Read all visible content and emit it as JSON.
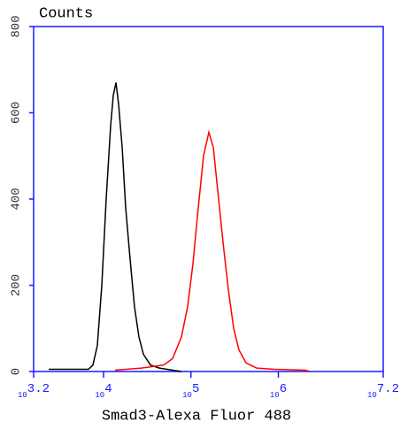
{
  "chart_data": {
    "type": "line",
    "ylabel": "Counts",
    "xlabel": "Smad3-Alexa Fluor 488",
    "xscale": "log",
    "xlim": [
      1584.893,
      15848931.92
    ],
    "xticks": [
      {
        "value": 1584.893,
        "label": "10^3.2"
      },
      {
        "value": 10000,
        "label": "10^4"
      },
      {
        "value": 100000,
        "label": "10^5"
      },
      {
        "value": 1000000,
        "label": "10^6"
      },
      {
        "value": 15848931.92,
        "label": "10^7.2"
      }
    ],
    "ylim": [
      0,
      800
    ],
    "yticks": [
      0,
      200,
      400,
      600,
      800
    ],
    "axis_color": "#1a1aff",
    "series": [
      {
        "color": "#000000",
        "x": [
          2355,
          6730,
          7550,
          8490,
          9550,
          10720,
          12050,
          12920,
          13870,
          14860,
          16330,
          17910,
          20140,
          22600,
          25410,
          28560,
          34430,
          43450,
          61660,
          77800
        ],
        "values": [
          5,
          5,
          15,
          60,
          200,
          400,
          570,
          640,
          670,
          620,
          520,
          380,
          260,
          150,
          80,
          40,
          15,
          8,
          3,
          0
        ]
      },
      {
        "color": "#ff0000",
        "x": [
          13550,
          27230,
          48820,
          61660,
          77800,
          91540,
          105400,
          121300,
          139300,
          160300,
          180200,
          202400,
          232800,
          267700,
          308100,
          354300,
          426900,
          564500,
          899800,
          2037000,
          2285000
        ],
        "values": [
          3,
          8,
          15,
          30,
          80,
          150,
          250,
          380,
          500,
          555,
          520,
          420,
          300,
          190,
          100,
          50,
          20,
          8,
          5,
          3,
          0
        ]
      }
    ]
  }
}
